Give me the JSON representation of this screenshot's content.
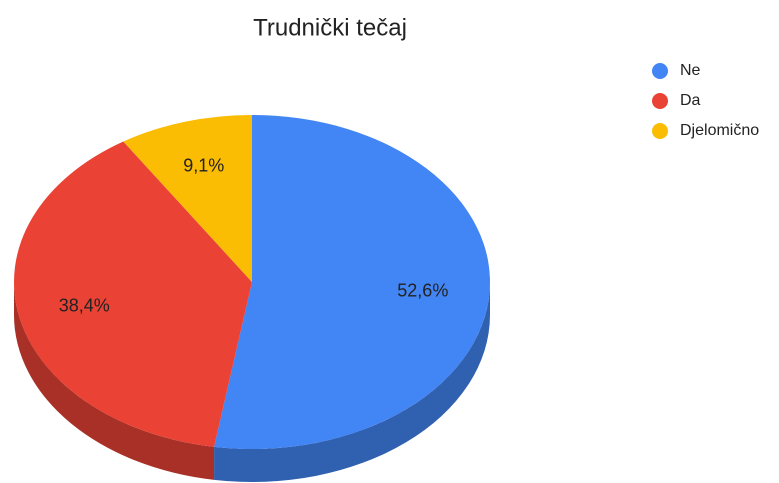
{
  "chart_data": {
    "type": "pie",
    "title": "Trudnički tečaj",
    "three_d": true,
    "categories": [
      "Ne",
      "Da",
      "Djelomično"
    ],
    "values": [
      52.6,
      38.4,
      9.1
    ],
    "value_labels": [
      "52,6%",
      "38,4%",
      "9,1%"
    ],
    "colors": [
      "#4285f4",
      "#ea4335",
      "#fbbc04"
    ],
    "legend": "right"
  }
}
